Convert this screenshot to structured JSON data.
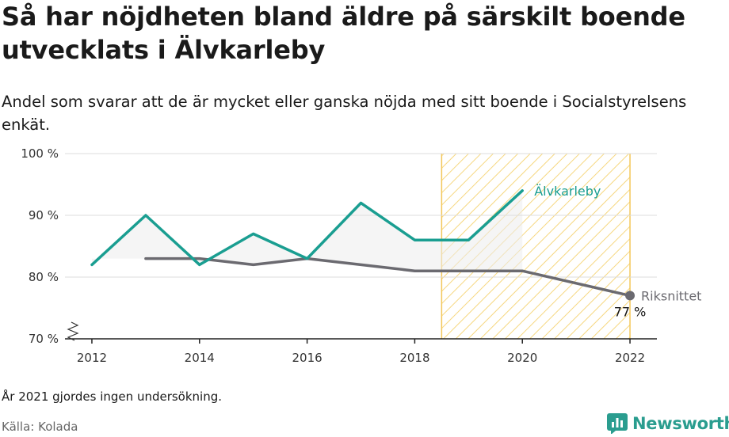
{
  "title": "Så har nöjdheten bland äldre på särskilt boende utvecklats i Älvkarleby",
  "subtitle": "Andel som svarar att de är mycket eller ganska nöjda med sitt boende i Socialstyrelsens enkät.",
  "note": "År 2021 gjordes ingen undersökning.",
  "source": "Källa: Kolada",
  "brand": "Newsworthy",
  "colors": {
    "municipality": "#1a9e91",
    "national": "#6b6a70",
    "highlight_stripe": "#f6d77f",
    "highlight_border": "#f3c75a",
    "gap_fill": "#ececec",
    "grid": "#dddddd",
    "brand": "#2a9d8f"
  },
  "chart_data": {
    "type": "line",
    "x_ticks": [
      2012,
      2014,
      2016,
      2018,
      2020,
      2022
    ],
    "y_ticks": [
      70,
      80,
      90,
      100
    ],
    "y_tick_labels": [
      "70 %",
      "80 %",
      "90 %",
      "100 %"
    ],
    "xlim": [
      2011.5,
      2022.5
    ],
    "ylim": [
      70,
      100
    ],
    "y_axis_broken": true,
    "highlight_range": [
      2018.5,
      2022
    ],
    "series": [
      {
        "name": "Älvkarleby",
        "x": [
          2012,
          2013,
          2014,
          2015,
          2016,
          2017,
          2018,
          2019,
          2020
        ],
        "values": [
          82,
          90,
          82,
          87,
          83,
          92,
          86,
          86,
          94
        ]
      },
      {
        "name": "Riksnittet",
        "x": [
          2013,
          2014,
          2015,
          2016,
          2017,
          2018,
          2019,
          2020,
          2022
        ],
        "values": [
          83,
          83,
          82,
          83,
          82,
          81,
          81,
          81,
          77
        ]
      }
    ],
    "end_label": "77 %"
  }
}
